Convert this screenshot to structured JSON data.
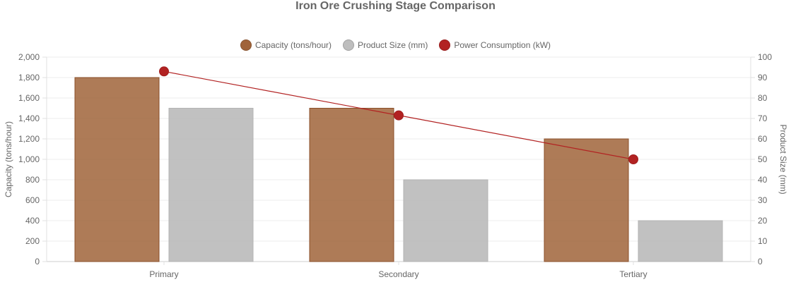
{
  "chart_data": {
    "type": "bar",
    "title": "Iron Ore Crushing Stage Comparison",
    "categories": [
      "Primary",
      "Secondary",
      "Tertiary"
    ],
    "series": [
      {
        "name": "Capacity (tons/hour)",
        "kind": "bar",
        "axis": "left",
        "color": "#a0643a",
        "values": [
          1800,
          1500,
          1200
        ]
      },
      {
        "name": "Product Size (mm)",
        "kind": "bar",
        "axis": "right",
        "color": "#bebebe",
        "values": [
          75,
          40,
          20
        ]
      },
      {
        "name": "Power Consumption (kW)",
        "kind": "line",
        "axis": "right",
        "color": "#b22222",
        "values": [
          93,
          71.5,
          50
        ]
      }
    ],
    "y_left": {
      "label": "Capacity (tons/hour)",
      "min": 0,
      "max": 2000,
      "ticks": [
        "0",
        "200",
        "400",
        "600",
        "800",
        "1,000",
        "1,200",
        "1,400",
        "1,600",
        "1,800",
        "2,000"
      ]
    },
    "y_right": {
      "label": "Product Size (mm)",
      "min": 0,
      "max": 100,
      "ticks": [
        "0",
        "10",
        "20",
        "30",
        "40",
        "50",
        "60",
        "70",
        "80",
        "90",
        "100"
      ]
    },
    "legend_position": "top",
    "grid": true
  }
}
